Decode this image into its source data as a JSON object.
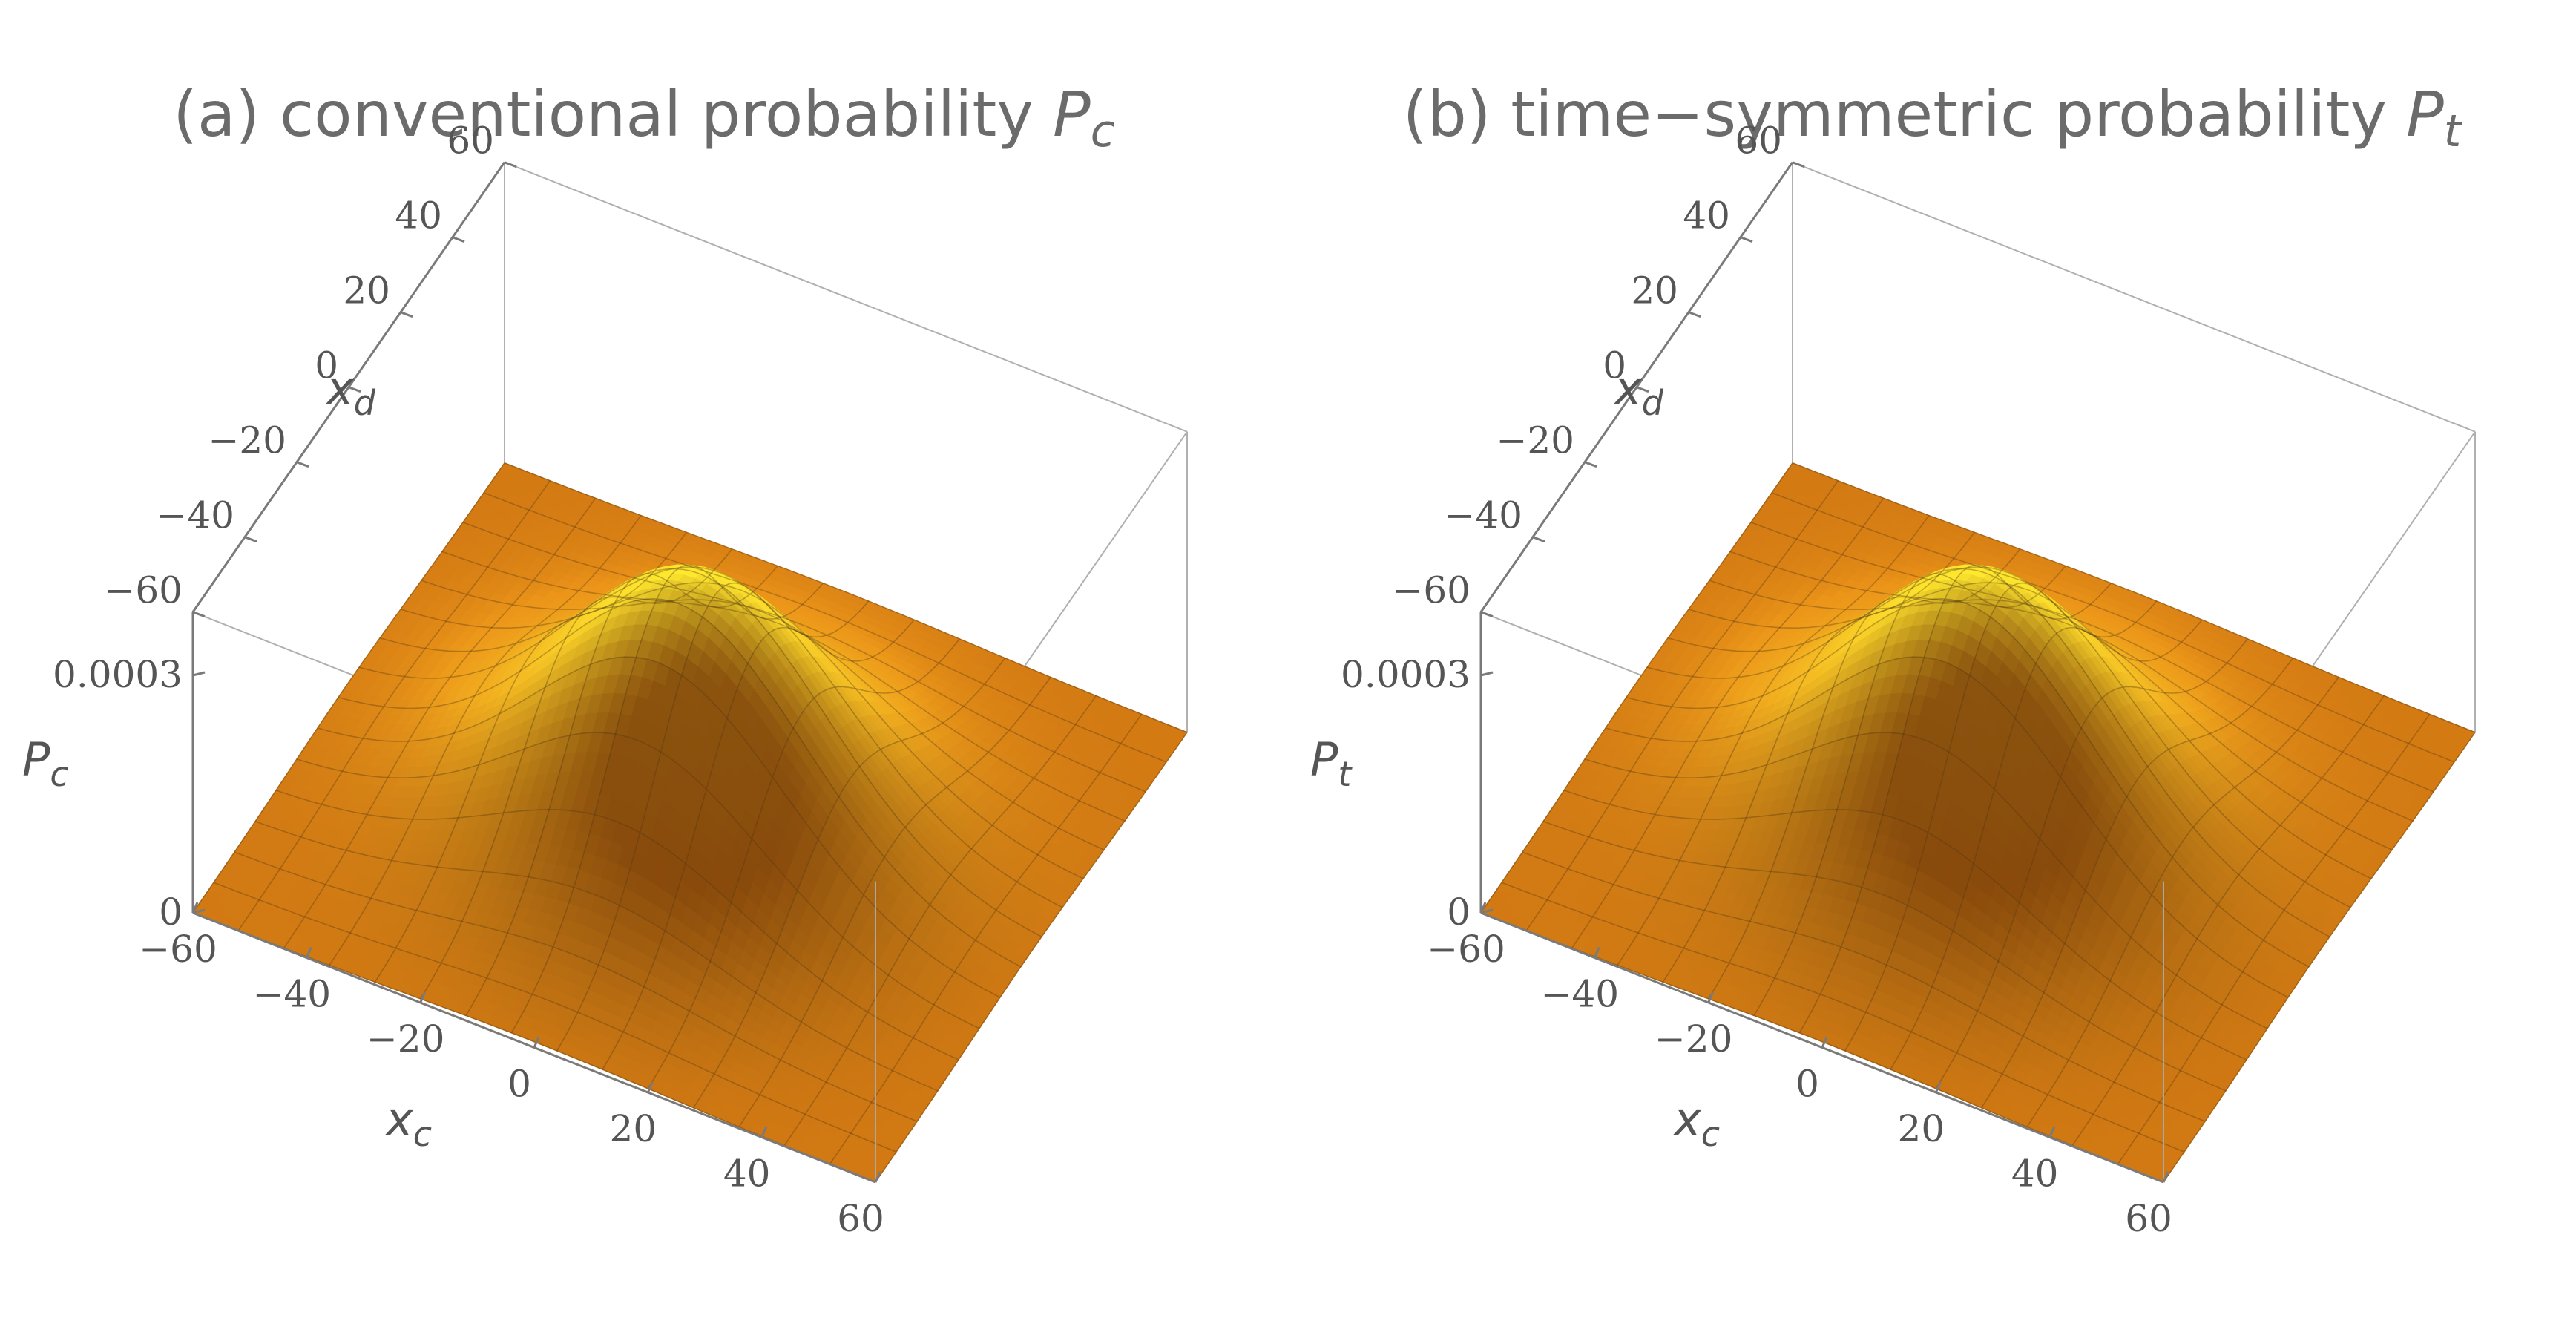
{
  "chart_data": [
    {
      "type": "surface3d",
      "title_text": "(a) conventional probability",
      "title_symbol": "P",
      "title_symbol_sub": "c",
      "xlabel": "x",
      "xlabel_sub": "c",
      "ylabel": "x",
      "ylabel_sub": "d",
      "zlabel": "P",
      "zlabel_sub": "c",
      "xlim": [
        -60,
        60
      ],
      "ylim": [
        -60,
        60
      ],
      "zlim": [
        0,
        0.0003
      ],
      "x_ticks": [
        "−60",
        "−40",
        "−20",
        "0",
        "20",
        "40",
        "60"
      ],
      "y_ticks": [
        "−60",
        "−40",
        "−20",
        "0",
        "20",
        "40",
        "60"
      ],
      "z_ticks": [
        "0",
        "0.0003"
      ],
      "peak": {
        "x": 0,
        "y": 0,
        "value": 0.0003
      },
      "sigma": 22,
      "colors": {
        "surface_low": "#e98a16",
        "surface_high": "#ffe92e",
        "shadow": "#6b2d06"
      }
    },
    {
      "type": "surface3d",
      "title_text": "(b) time−symmetric probability",
      "title_symbol": "P",
      "title_symbol_sub": "t",
      "xlabel": "x",
      "xlabel_sub": "c",
      "ylabel": "x",
      "ylabel_sub": "d",
      "zlabel": "P",
      "zlabel_sub": "t",
      "xlim": [
        -60,
        60
      ],
      "ylim": [
        -60,
        60
      ],
      "zlim": [
        0,
        0.0003
      ],
      "x_ticks": [
        "−60",
        "−40",
        "−20",
        "0",
        "20",
        "40",
        "60"
      ],
      "y_ticks": [
        "−60",
        "−40",
        "−20",
        "0",
        "20",
        "40",
        "60"
      ],
      "z_ticks": [
        "0",
        "0.0003"
      ],
      "peak": {
        "x": 0,
        "y": 0,
        "value": 0.0003
      },
      "sigma": 22,
      "colors": {
        "surface_low": "#e98a16",
        "surface_high": "#ffe92e",
        "shadow": "#6b2d06"
      }
    }
  ]
}
